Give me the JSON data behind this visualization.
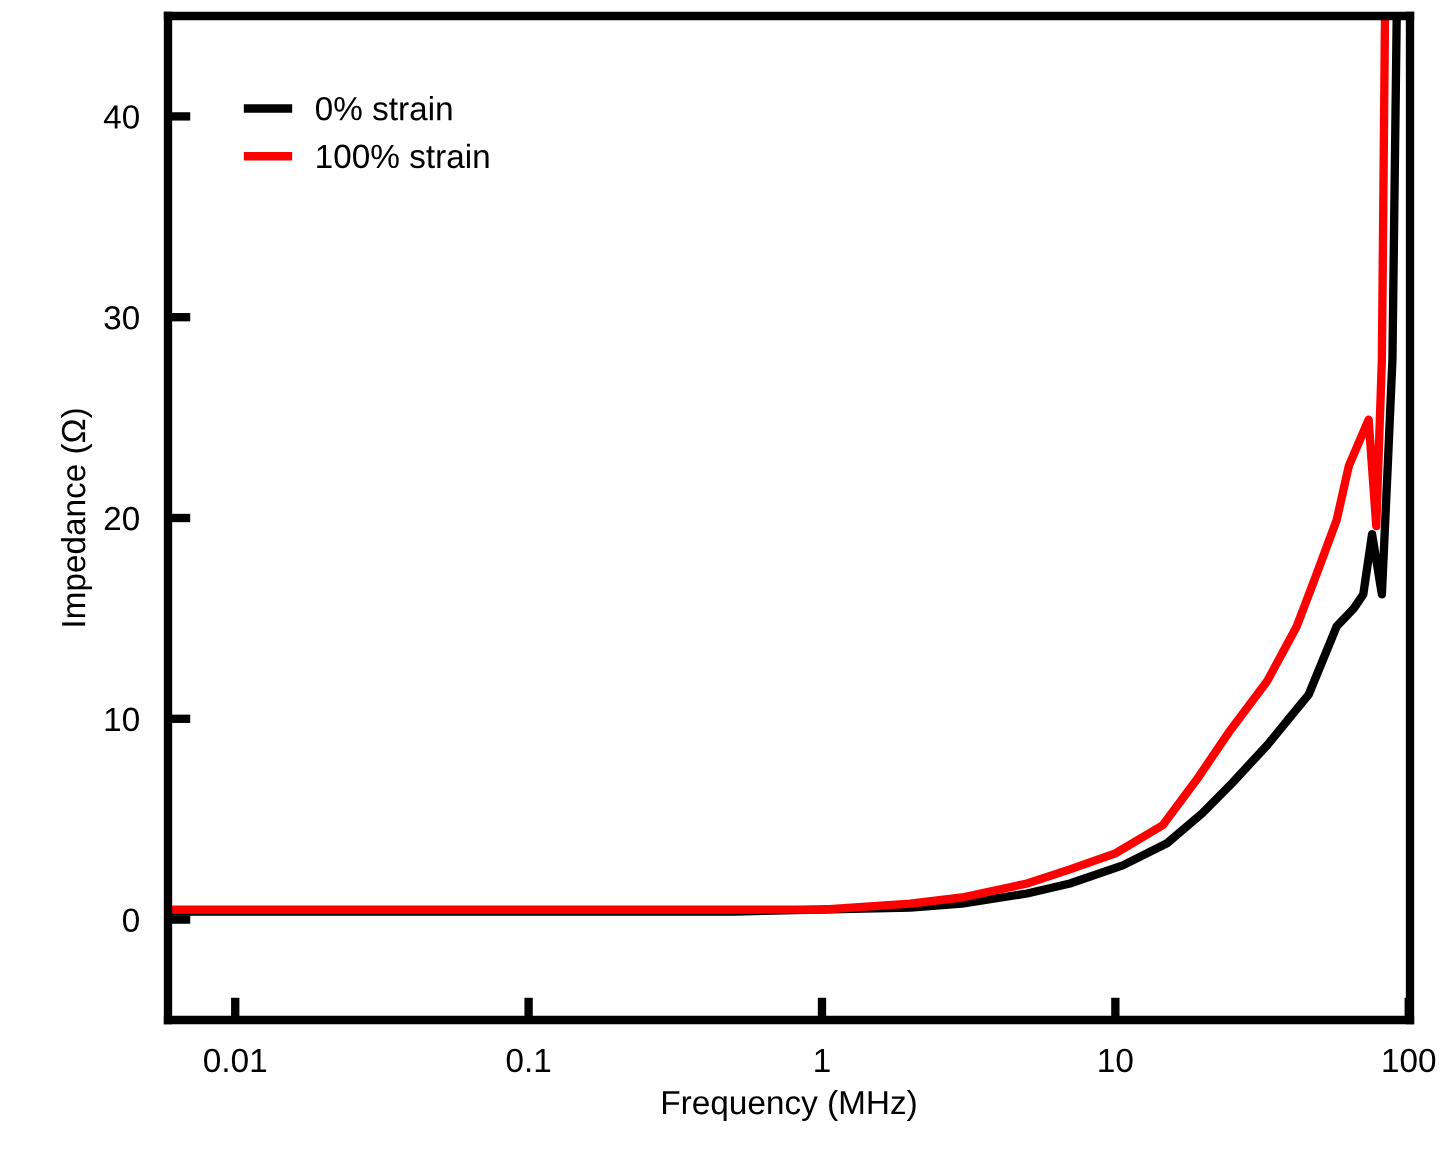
{
  "chart_data": {
    "type": "line",
    "xlabel": "Frequency (MHz)",
    "ylabel": "Impedance (Ω)",
    "log": "x",
    "xlim": [
      0.0059,
      101
    ],
    "xticks": [
      0.01,
      0.1,
      1,
      10,
      100
    ],
    "ylim": [
      -5,
      45
    ],
    "yticks": [
      0,
      10,
      20,
      30,
      40
    ],
    "grid": false,
    "legend": "top left",
    "marker": "none",
    "line_style": "solid",
    "series": [
      {
        "name": "0% strain",
        "color": "#000000",
        "x": [
          0.0059,
          0.01,
          0.1,
          0.5,
          2,
          3,
          5,
          7,
          10.6,
          15,
          19.8,
          25,
          33,
          40,
          45.6,
          56.8,
          65,
          70,
          75,
          81,
          85,
          88,
          91
        ],
        "values": [
          0.4,
          0.4,
          0.4,
          0.4,
          0.6,
          0.8,
          1.3,
          1.8,
          2.7,
          3.8,
          5.3,
          6.8,
          8.7,
          10.2,
          11.2,
          14.6,
          15.5,
          16.2,
          19.2,
          16.2,
          22.9,
          27.9,
          45
        ]
      },
      {
        "name": "100% strain",
        "color": "#ff0000",
        "x": [
          0.0059,
          0.01,
          0.1,
          0.5,
          1,
          2,
          3,
          5,
          7,
          10,
          14.5,
          19,
          24.3,
          33,
          41.5,
          48.5,
          56.8,
          62.5,
          73,
          77.5,
          81,
          83
        ],
        "values": [
          0.5,
          0.5,
          0.5,
          0.5,
          0.5,
          0.8,
          1.1,
          1.8,
          2.5,
          3.3,
          4.7,
          7,
          9.3,
          11.9,
          14.6,
          17.2,
          19.9,
          22.6,
          24.9,
          19.6,
          27.9,
          45
        ]
      }
    ]
  }
}
